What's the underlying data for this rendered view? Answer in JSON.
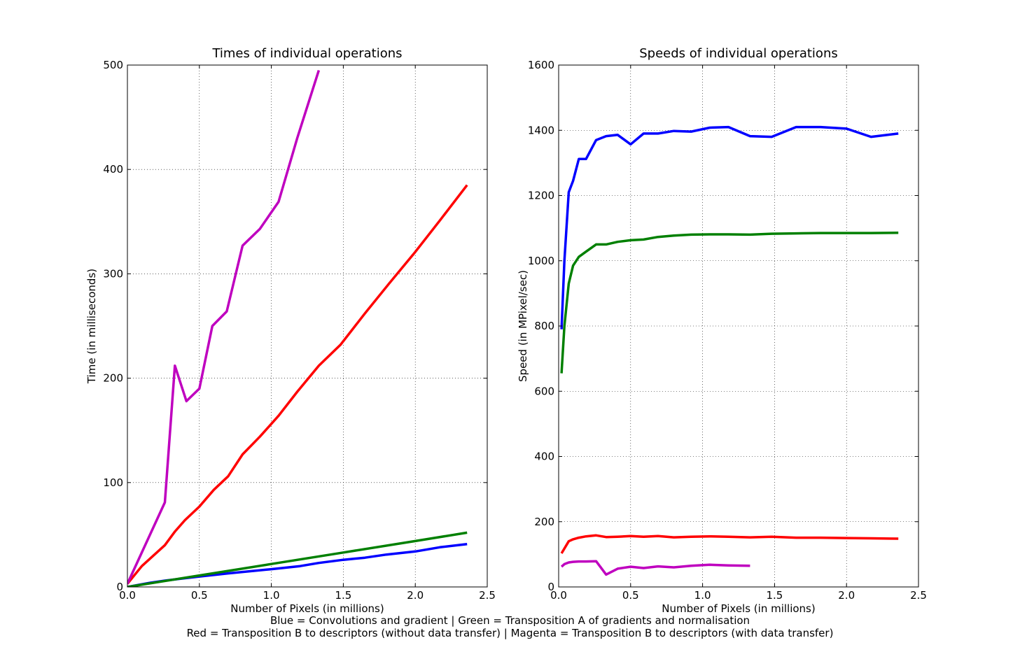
{
  "chart_data": [
    {
      "type": "line",
      "title": "Times of individual operations",
      "xlabel": "Number of Pixels (in millions)",
      "ylabel": "Time (in milliseconds)",
      "xlim": [
        0.0,
        2.5
      ],
      "ylim": [
        0,
        500
      ],
      "xticks": [
        "0.0",
        "0.5",
        "1.0",
        "1.5",
        "2.0",
        "2.5"
      ],
      "yticks": [
        "0",
        "100",
        "200",
        "300",
        "400",
        "500"
      ],
      "grid": true,
      "series": [
        {
          "color": "#0000ff",
          "x": [
            0.0,
            0.08,
            0.16,
            0.26,
            0.5,
            0.7,
            1.0,
            1.2,
            1.33,
            1.5,
            1.65,
            1.8,
            2.0,
            2.17,
            2.36
          ],
          "y": [
            0,
            2,
            4,
            6,
            10,
            13,
            17,
            20,
            23,
            26,
            28,
            31,
            34,
            38,
            41
          ]
        },
        {
          "color": "#008000",
          "x": [
            0.0,
            0.5,
            1.0,
            1.5,
            2.0,
            2.36
          ],
          "y": [
            0,
            11,
            22,
            33,
            44,
            52
          ]
        },
        {
          "color": "#ff0000",
          "x": [
            0.0,
            0.1,
            0.26,
            0.33,
            0.4,
            0.5,
            0.6,
            0.7,
            0.8,
            0.92,
            1.05,
            1.18,
            1.33,
            1.48,
            1.65,
            1.82,
            2.0,
            2.17,
            2.36
          ],
          "y": [
            3,
            20,
            40,
            53,
            64,
            77,
            93,
            106,
            127,
            144,
            164,
            187,
            212,
            232,
            262,
            291,
            321,
            351,
            385
          ]
        },
        {
          "color": "#bf00bf",
          "x": [
            0.0,
            0.26,
            0.33,
            0.41,
            0.5,
            0.59,
            0.69,
            0.8,
            0.92,
            1.05,
            1.18,
            1.33
          ],
          "y": [
            3,
            81,
            212,
            178,
            190,
            250,
            264,
            327,
            343,
            369,
            430,
            495
          ]
        }
      ]
    },
    {
      "type": "line",
      "title": "Speeds of individual operations",
      "xlabel": "Number of Pixels (in millions)",
      "ylabel": "Speed (in MPixel/sec)",
      "xlim": [
        0.0,
        2.5
      ],
      "ylim": [
        0,
        1600
      ],
      "xticks": [
        "0.0",
        "0.5",
        "1.0",
        "1.5",
        "2.0",
        "2.5"
      ],
      "yticks": [
        "0",
        "200",
        "400",
        "600",
        "800",
        "1000",
        "1200",
        "1400",
        "1600"
      ],
      "grid": true,
      "series": [
        {
          "color": "#0000ff",
          "x": [
            0.02,
            0.04,
            0.07,
            0.1,
            0.14,
            0.19,
            0.26,
            0.33,
            0.41,
            0.5,
            0.59,
            0.69,
            0.8,
            0.92,
            1.05,
            1.18,
            1.33,
            1.48,
            1.65,
            1.82,
            2.0,
            2.17,
            2.36
          ],
          "y": [
            790,
            1000,
            1210,
            1245,
            1312,
            1312,
            1370,
            1382,
            1386,
            1357,
            1390,
            1390,
            1398,
            1396,
            1408,
            1410,
            1382,
            1380,
            1410,
            1410,
            1405,
            1380,
            1390
          ]
        },
        {
          "color": "#008000",
          "x": [
            0.02,
            0.04,
            0.07,
            0.1,
            0.14,
            0.19,
            0.26,
            0.33,
            0.41,
            0.5,
            0.59,
            0.69,
            0.8,
            0.92,
            1.05,
            1.18,
            1.33,
            1.48,
            1.65,
            1.82,
            2.0,
            2.17,
            2.36
          ],
          "y": [
            655,
            800,
            930,
            985,
            1012,
            1028,
            1050,
            1050,
            1058,
            1063,
            1065,
            1073,
            1077,
            1080,
            1081,
            1081,
            1080,
            1083,
            1084,
            1085,
            1085,
            1085,
            1086
          ]
        },
        {
          "color": "#ff0000",
          "x": [
            0.02,
            0.07,
            0.1,
            0.14,
            0.19,
            0.26,
            0.33,
            0.41,
            0.5,
            0.59,
            0.69,
            0.8,
            0.92,
            1.05,
            1.18,
            1.33,
            1.48,
            1.65,
            1.82,
            2.0,
            2.17,
            2.36
          ],
          "y": [
            103,
            140,
            146,
            151,
            155,
            158,
            153,
            154,
            156,
            154,
            156,
            152,
            154,
            155,
            154,
            152,
            154,
            151,
            151,
            150,
            149,
            148
          ]
        },
        {
          "color": "#bf00bf",
          "x": [
            0.02,
            0.04,
            0.07,
            0.1,
            0.14,
            0.19,
            0.26,
            0.33,
            0.41,
            0.5,
            0.59,
            0.69,
            0.8,
            0.92,
            1.05,
            1.18,
            1.33
          ],
          "y": [
            62,
            70,
            75,
            77,
            78,
            78,
            79,
            38,
            56,
            62,
            58,
            63,
            60,
            65,
            68,
            66,
            65
          ]
        }
      ]
    }
  ],
  "caption": {
    "line1": "Blue = Convolutions and gradient | Green = Transposition A of gradients and normalisation",
    "line2": "Red = Transposition B to descriptors (without data transfer) | Magenta = Transposition B to descriptors (with data transfer)"
  }
}
